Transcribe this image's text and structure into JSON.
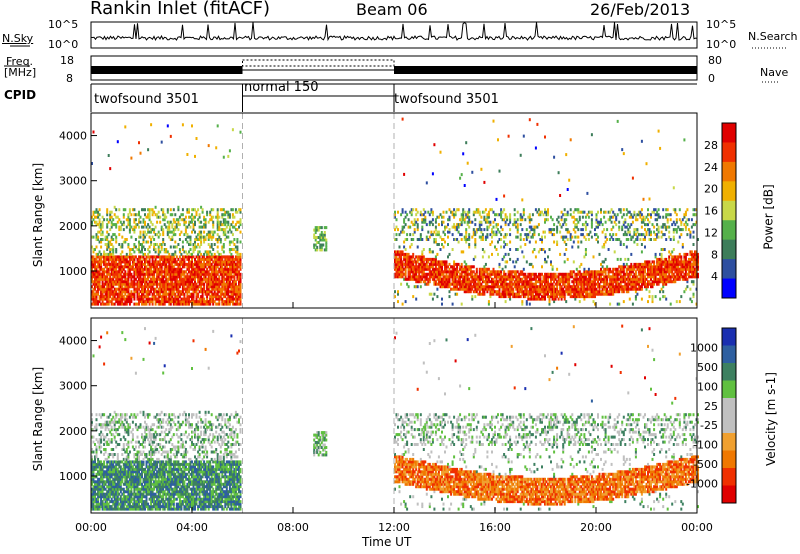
{
  "header": {
    "station": "Rankin Inlet (fitACF)",
    "beam": "Beam 06",
    "date": "26/Feb/2013"
  },
  "sky_panel": {
    "left_label": "N.Sky",
    "right_label": "N.Search",
    "left_ticks": [
      "10^5",
      "10^0"
    ],
    "right_ticks": [
      "10^5",
      "10^0"
    ]
  },
  "freq_panel": {
    "left_label_1": "Freq.",
    "left_label_2": "[MHz]",
    "right_label": "Nave",
    "left_ticks": [
      "18",
      "8"
    ],
    "right_ticks": [
      "80",
      "0"
    ]
  },
  "cpid": {
    "label": "CPID",
    "segments": [
      {
        "name": "twofsound 3501",
        "start_h": 0,
        "end_h": 6
      },
      {
        "name": "normal 150",
        "start_h": 6,
        "end_h": 12
      },
      {
        "name": "twofsound 3501",
        "start_h": 12,
        "end_h": 24
      }
    ]
  },
  "colors": {
    "power_scale": [
      "#0000ff",
      "#2e4fa0",
      "#3d7d5a",
      "#55b04a",
      "#c8d848",
      "#f0b000",
      "#f07800",
      "#f03000",
      "#e00000"
    ],
    "velocity_scale": [
      "#e00000",
      "#f03000",
      "#f07800",
      "#f0a030",
      "#c0c0c0",
      "#c0c0c0",
      "#60c040",
      "#3d8060",
      "#2e5fa0",
      "#1a2fb0"
    ]
  },
  "chart_data": [
    {
      "type": "heatmap",
      "title": "",
      "xlabel": "Time UT",
      "ylabel": "Slant Range [km]",
      "xlim": [
        0,
        24
      ],
      "ylim": [
        180,
        4500
      ],
      "x_ticks": [
        "00:00",
        "04:00",
        "08:00",
        "12:00",
        "16:00",
        "20:00",
        "00:00"
      ],
      "y_ticks": [
        "1000",
        "2000",
        "3000",
        "4000"
      ],
      "colorbar_label": "Power [dB]",
      "colorbar_ticks": [
        "4",
        "8",
        "12",
        "16",
        "20",
        "24",
        "28"
      ],
      "cb_range": [
        0,
        32
      ]
    },
    {
      "type": "heatmap",
      "title": "",
      "xlabel": "Time UT",
      "ylabel": "Slant Range [km]",
      "xlim": [
        0,
        24
      ],
      "ylim": [
        180,
        4500
      ],
      "x_ticks": [
        "00:00",
        "04:00",
        "08:00",
        "12:00",
        "16:00",
        "20:00",
        "00:00"
      ],
      "y_ticks": [
        "1000",
        "2000",
        "3000",
        "4000"
      ],
      "colorbar_label": "Velocity [m s-1]",
      "colorbar_ticks": [
        "1000",
        "500",
        "100",
        "25",
        "-25",
        "-100",
        "-500",
        "-1000"
      ]
    }
  ],
  "xaxis_title": "Time UT"
}
